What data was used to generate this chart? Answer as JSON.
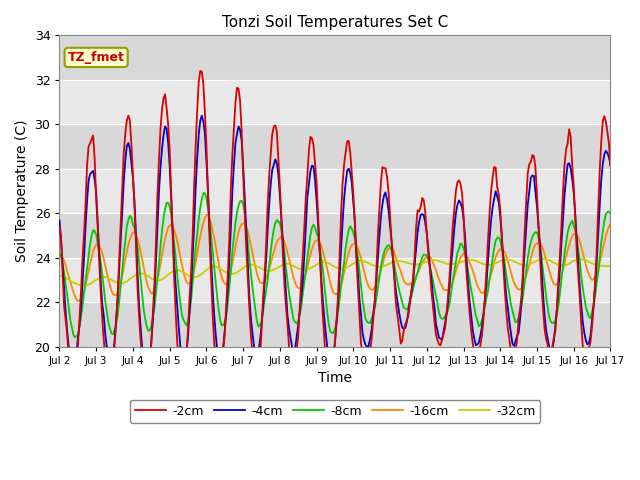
{
  "title": "Tonzi Soil Temperatures Set C",
  "xlabel": "Time",
  "ylabel": "Soil Temperature (C)",
  "ylim": [
    20,
    34
  ],
  "xlim": [
    0,
    360
  ],
  "tick_labels": [
    "Jul 2",
    "Jul 3",
    "Jul 4",
    "Jul 5",
    "Jul 6",
    "Jul 7",
    "Jul 8",
    "Jul 9",
    "Jul 10",
    "Jul 11",
    "Jul 12",
    "Jul 13",
    "Jul 14",
    "Jul 15",
    "Jul 16",
    "Jul 17"
  ],
  "tick_positions": [
    0,
    24,
    48,
    72,
    96,
    120,
    144,
    168,
    192,
    216,
    240,
    264,
    288,
    312,
    336,
    360
  ],
  "legend_labels": [
    "-2cm",
    "-4cm",
    "-8cm",
    "-16cm",
    "-32cm"
  ],
  "line_colors": [
    "#dd0000",
    "#0000cc",
    "#00cc00",
    "#ff8800",
    "#cccc00"
  ],
  "annotation_text": "TZ_fmet",
  "annotation_color": "#cc0000",
  "annotation_bg": "#ffffcc",
  "annotation_border": "#999900",
  "plot_bg_color": "#e8e8e8",
  "band_color_light": "#d8d8d8",
  "band_color_dark": "#e8e8e8",
  "grid_color": "#ffffff",
  "n_hours": 361
}
